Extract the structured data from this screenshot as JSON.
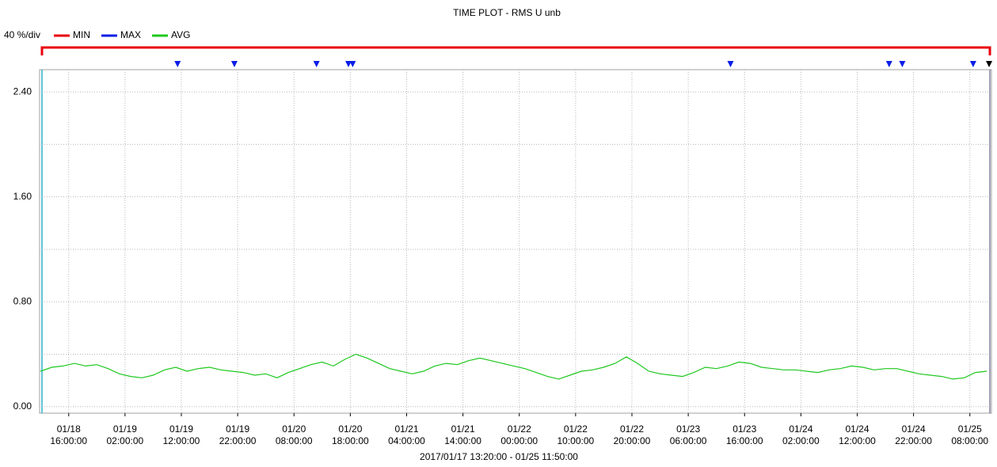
{
  "chart_data": {
    "type": "line",
    "title": "TIME PLOT - RMS  U unb",
    "subtitle": "2017/01/17 13:20:00 - 01/25 11:50:00",
    "scale_label": "40 %/div",
    "legend": [
      {
        "name": "MIN",
        "color": "#e8000b"
      },
      {
        "name": "MAX",
        "color": "#0a1ee8"
      },
      {
        "name": "AVG",
        "color": "#1ec81e"
      }
    ],
    "x": [
      "2017-01-18T11:00",
      "2017-01-18T13:00",
      "2017-01-18T15:00",
      "2017-01-18T17:00",
      "2017-01-18T19:00",
      "2017-01-18T21:00",
      "2017-01-18T23:00",
      "2017-01-19T01:00",
      "2017-01-19T03:00",
      "2017-01-19T05:00",
      "2017-01-19T07:00",
      "2017-01-19T09:00",
      "2017-01-19T11:00",
      "2017-01-19T13:00",
      "2017-01-19T15:00",
      "2017-01-19T17:00",
      "2017-01-19T19:00",
      "2017-01-19T21:00",
      "2017-01-19T23:00",
      "2017-01-20T01:00",
      "2017-01-20T03:00",
      "2017-01-20T05:00",
      "2017-01-20T07:00",
      "2017-01-20T09:00",
      "2017-01-20T11:00",
      "2017-01-20T13:00",
      "2017-01-20T15:00",
      "2017-01-20T17:00",
      "2017-01-20T19:00",
      "2017-01-20T21:00",
      "2017-01-20T23:00",
      "2017-01-21T01:00",
      "2017-01-21T03:00",
      "2017-01-21T05:00",
      "2017-01-21T07:00",
      "2017-01-21T09:00",
      "2017-01-21T11:00",
      "2017-01-21T13:00",
      "2017-01-21T15:00",
      "2017-01-21T17:00",
      "2017-01-21T19:00",
      "2017-01-21T21:00",
      "2017-01-21T23:00",
      "2017-01-22T01:00",
      "2017-01-22T03:00",
      "2017-01-22T05:00",
      "2017-01-22T07:00",
      "2017-01-22T09:00",
      "2017-01-22T11:00",
      "2017-01-22T13:00",
      "2017-01-22T15:00",
      "2017-01-22T17:00",
      "2017-01-22T19:00",
      "2017-01-22T21:00",
      "2017-01-22T23:00",
      "2017-01-23T01:00",
      "2017-01-23T03:00",
      "2017-01-23T05:00",
      "2017-01-23T07:00",
      "2017-01-23T09:00",
      "2017-01-23T11:00",
      "2017-01-23T13:00",
      "2017-01-23T15:00",
      "2017-01-23T17:00",
      "2017-01-23T19:00",
      "2017-01-23T21:00",
      "2017-01-23T23:00",
      "2017-01-24T01:00",
      "2017-01-24T03:00",
      "2017-01-24T05:00",
      "2017-01-24T07:00",
      "2017-01-24T09:00",
      "2017-01-24T11:00",
      "2017-01-24T13:00",
      "2017-01-24T15:00",
      "2017-01-24T17:00",
      "2017-01-24T19:00",
      "2017-01-24T21:00",
      "2017-01-24T23:00",
      "2017-01-25T01:00",
      "2017-01-25T03:00",
      "2017-01-25T05:00",
      "2017-01-25T07:00",
      "2017-01-25T09:00",
      "2017-01-25T11:00"
    ],
    "series": [
      {
        "name": "AVG",
        "color": "#1ec81e",
        "values": [
          0.27,
          0.3,
          0.31,
          0.33,
          0.31,
          0.32,
          0.29,
          0.25,
          0.23,
          0.22,
          0.24,
          0.28,
          0.3,
          0.27,
          0.29,
          0.3,
          0.28,
          0.27,
          0.26,
          0.24,
          0.25,
          0.22,
          0.26,
          0.29,
          0.32,
          0.34,
          0.31,
          0.36,
          0.4,
          0.37,
          0.33,
          0.29,
          0.27,
          0.25,
          0.27,
          0.31,
          0.33,
          0.32,
          0.35,
          0.37,
          0.35,
          0.33,
          0.31,
          0.29,
          0.26,
          0.23,
          0.21,
          0.24,
          0.27,
          0.28,
          0.3,
          0.33,
          0.38,
          0.33,
          0.27,
          0.25,
          0.24,
          0.23,
          0.26,
          0.3,
          0.29,
          0.31,
          0.34,
          0.33,
          0.3,
          0.29,
          0.28,
          0.28,
          0.27,
          0.26,
          0.28,
          0.29,
          0.31,
          0.3,
          0.28,
          0.29,
          0.29,
          0.27,
          0.25,
          0.24,
          0.23,
          0.21,
          0.22,
          0.26,
          0.27
        ]
      }
    ],
    "markers": [
      {
        "x": "2017-01-19T11:20",
        "color": "#0a1ee8"
      },
      {
        "x": "2017-01-19T21:25",
        "color": "#0a1ee8"
      },
      {
        "x": "2017-01-20T12:00",
        "color": "#0a1ee8"
      },
      {
        "x": "2017-01-20T17:40",
        "color": "#0a1ee8"
      },
      {
        "x": "2017-01-20T18:25",
        "color": "#0a1ee8"
      },
      {
        "x": "2017-01-23T13:30",
        "color": "#0a1ee8"
      },
      {
        "x": "2017-01-24T17:40",
        "color": "#0a1ee8"
      },
      {
        "x": "2017-01-24T20:00",
        "color": "#0a1ee8"
      },
      {
        "x": "2017-01-25T08:35",
        "color": "#0a1ee8"
      },
      {
        "x": "2017-01-25T11:25",
        "color": "#000000"
      }
    ],
    "xlim": [
      "2017-01-18T10:50",
      "2017-01-25T11:50"
    ],
    "xticks": [
      {
        "value": "2017-01-18T16:00",
        "label": [
          "01/18",
          "16:00:00"
        ]
      },
      {
        "value": "2017-01-19T02:00",
        "label": [
          "01/19",
          "02:00:00"
        ]
      },
      {
        "value": "2017-01-19T12:00",
        "label": [
          "01/19",
          "12:00:00"
        ]
      },
      {
        "value": "2017-01-19T22:00",
        "label": [
          "01/19",
          "22:00:00"
        ]
      },
      {
        "value": "2017-01-20T08:00",
        "label": [
          "01/20",
          "08:00:00"
        ]
      },
      {
        "value": "2017-01-20T18:00",
        "label": [
          "01/20",
          "18:00:00"
        ]
      },
      {
        "value": "2017-01-21T04:00",
        "label": [
          "01/21",
          "04:00:00"
        ]
      },
      {
        "value": "2017-01-21T14:00",
        "label": [
          "01/21",
          "14:00:00"
        ]
      },
      {
        "value": "2017-01-22T00:00",
        "label": [
          "01/22",
          "00:00:00"
        ]
      },
      {
        "value": "2017-01-22T10:00",
        "label": [
          "01/22",
          "10:00:00"
        ]
      },
      {
        "value": "2017-01-22T20:00",
        "label": [
          "01/22",
          "20:00:00"
        ]
      },
      {
        "value": "2017-01-23T06:00",
        "label": [
          "01/23",
          "06:00:00"
        ]
      },
      {
        "value": "2017-01-23T16:00",
        "label": [
          "01/23",
          "16:00:00"
        ]
      },
      {
        "value": "2017-01-24T02:00",
        "label": [
          "01/24",
          "02:00:00"
        ]
      },
      {
        "value": "2017-01-24T12:00",
        "label": [
          "01/24",
          "12:00:00"
        ]
      },
      {
        "value": "2017-01-24T22:00",
        "label": [
          "01/24",
          "22:00:00"
        ]
      },
      {
        "value": "2017-01-25T08:00",
        "label": [
          "01/25",
          "08:00:00"
        ]
      }
    ],
    "ylim": [
      -0.05,
      2.57
    ],
    "yticks": [
      {
        "value": 0,
        "label": "0.00"
      },
      {
        "value": 0.8,
        "label": "0.80"
      },
      {
        "value": 1.6,
        "label": "1.60"
      },
      {
        "value": 2.4,
        "label": "2.40"
      }
    ],
    "minor_yticks": [
      0.4,
      1.2,
      2.0
    ],
    "grid": true
  }
}
